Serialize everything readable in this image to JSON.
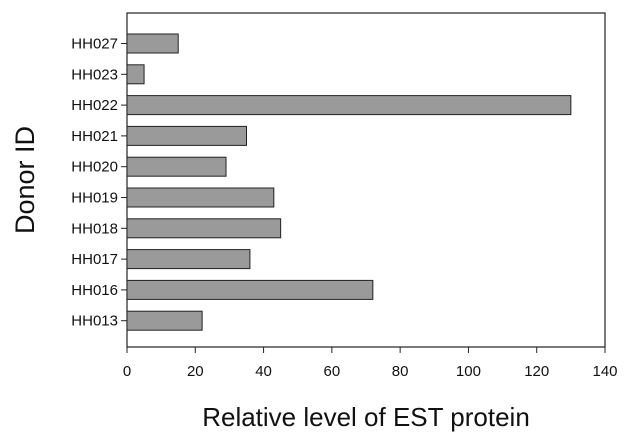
{
  "chart_data": {
    "type": "bar",
    "orientation": "horizontal",
    "title": "",
    "xlabel": "Relative level of EST protein",
    "ylabel": "Donor ID",
    "categories": [
      "HH027",
      "HH023",
      "HH022",
      "HH021",
      "HH020",
      "HH019",
      "HH018",
      "HH017",
      "HH016",
      "HH013"
    ],
    "values": [
      15,
      5,
      130,
      35,
      29,
      43,
      45,
      36,
      72,
      22
    ],
    "xlim": [
      0,
      140
    ],
    "xticks": [
      0,
      20,
      40,
      60,
      80,
      100,
      120,
      140
    ],
    "grid": false,
    "legend": "none",
    "bar_color": "#9a9a9a",
    "bar_edge_color": "#222222"
  }
}
